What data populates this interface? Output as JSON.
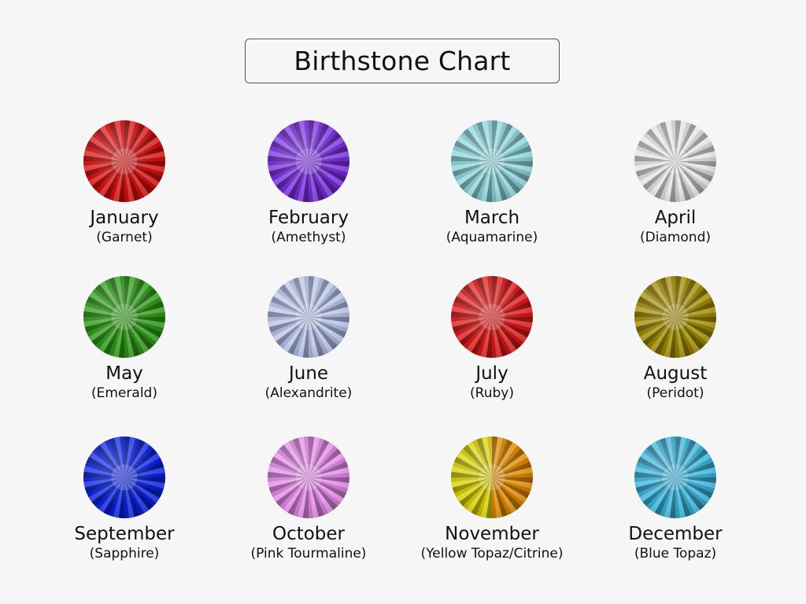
{
  "title": "Birthstone Chart",
  "stones": [
    {
      "month": "January",
      "stone": "(Garnet)",
      "color": "#d81010"
    },
    {
      "month": "February",
      "stone": "(Amethyst)",
      "color": "#7a2fe0"
    },
    {
      "month": "March",
      "stone": "(Aquamarine)",
      "color": "#8ed6dc"
    },
    {
      "month": "April",
      "stone": "(Diamond)",
      "color": "#e4e4e4"
    },
    {
      "month": "May",
      "stone": "(Emerald)",
      "color": "#2e9a18"
    },
    {
      "month": "June",
      "stone": "(Alexandrite)",
      "color": "#b8c4ea"
    },
    {
      "month": "July",
      "stone": "(Ruby)",
      "color": "#dc1a1a"
    },
    {
      "month": "August",
      "stone": "(Peridot)",
      "color": "#a08a00"
    },
    {
      "month": "September",
      "stone": "(Sapphire)",
      "color": "#0a22e0"
    },
    {
      "month": "October",
      "stone": "(Pink Tourmaline)",
      "color": "#e48ae8"
    },
    {
      "month": "November",
      "stone": "(Yellow Topaz/Citrine)",
      "color": "#d8d000",
      "color2": "#e08a00"
    },
    {
      "month": "December",
      "stone": "(Blue Topaz)",
      "color": "#3ab4dc"
    }
  ]
}
